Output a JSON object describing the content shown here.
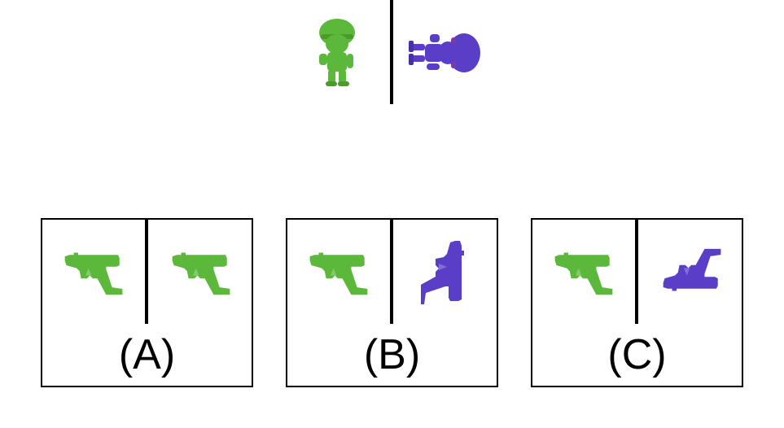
{
  "reference": {
    "left_icon": "green-soldier-figure-icon",
    "right_icon": "purple-soldier-figure-rotated-icon"
  },
  "options": [
    {
      "label": "(A)",
      "left_icon": "green-pistol-icon",
      "right_icon": "green-pistol-icon"
    },
    {
      "label": "(B)",
      "left_icon": "green-pistol-icon",
      "right_icon": "purple-pistol-rotated-icon"
    },
    {
      "label": "(C)",
      "left_icon": "green-pistol-icon",
      "right_icon": "purple-pistol-flipped-icon"
    }
  ],
  "colors": {
    "green": "#5cb83a",
    "purple": "#5a3ec8",
    "border": "#000000"
  }
}
